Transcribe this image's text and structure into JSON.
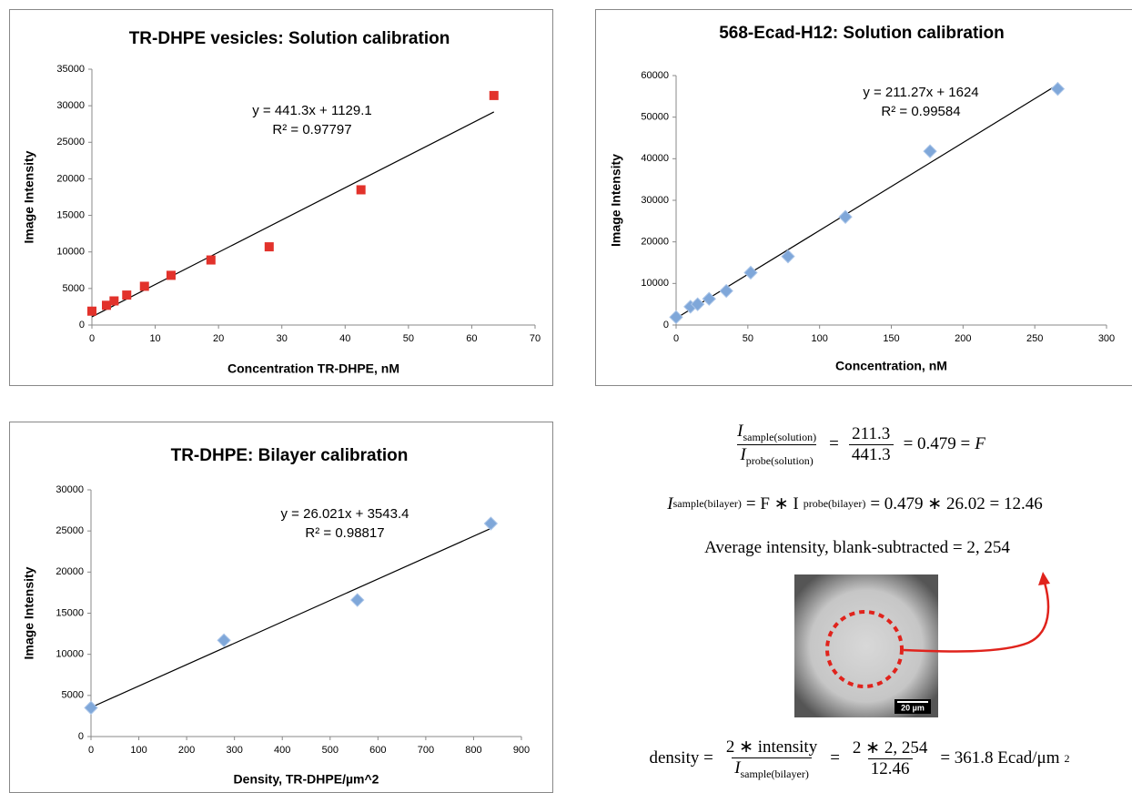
{
  "chart_data": [
    {
      "type": "scatter",
      "title": "TR-DHPE vesicles: Solution calibration",
      "xlabel": "Concentration TR-DHPE, nM",
      "ylabel": "Image Intensity",
      "marker": "square",
      "color": "#e2322b",
      "x": [
        0,
        2.3,
        3.5,
        5.5,
        8.3,
        12.5,
        18.8,
        28,
        42.5,
        63.5
      ],
      "values": [
        1900,
        2700,
        3300,
        4100,
        5300,
        6800,
        8900,
        10700,
        18500,
        31400
      ],
      "xlim": [
        0,
        70
      ],
      "xticks": [
        0,
        10,
        20,
        30,
        40,
        50,
        60,
        70
      ],
      "ylim": [
        0,
        35000
      ],
      "yticks": [
        0,
        5000,
        10000,
        15000,
        20000,
        25000,
        30000,
        35000
      ],
      "trendline": {
        "equation": "y = 441.3x + 1129.1",
        "r2": "R² = 0.97797",
        "slope": 441.3,
        "intercept": 1129.1,
        "color": "#000000"
      }
    },
    {
      "type": "scatter",
      "title": "568-Ecad-H12: Solution calibration",
      "xlabel": "Concentration, nM",
      "ylabel": "Image Intensity",
      "marker": "diamond",
      "color": "#7fa7d9",
      "x": [
        0,
        10,
        15,
        23,
        35,
        52,
        78,
        118,
        177,
        266
      ],
      "values": [
        1900,
        4400,
        5000,
        6300,
        8200,
        12600,
        16500,
        26000,
        41800,
        56800
      ],
      "xlim": [
        0,
        300
      ],
      "xticks": [
        0,
        50,
        100,
        150,
        200,
        250,
        300
      ],
      "ylim": [
        0,
        60000
      ],
      "yticks": [
        0,
        10000,
        20000,
        30000,
        40000,
        50000,
        60000
      ],
      "trendline": {
        "equation": "y = 211.27x + 1624",
        "r2": "R² = 0.99584",
        "slope": 211.27,
        "intercept": 1624,
        "color": "#000000"
      }
    },
    {
      "type": "scatter",
      "title": "TR-DHPE: Bilayer calibration",
      "xlabel": "Density, TR-DHPE/µm^2",
      "ylabel": "Image Intensity",
      "marker": "diamond",
      "color": "#7fa7d9",
      "x": [
        0,
        278,
        557,
        836
      ],
      "values": [
        3500,
        11700,
        16600,
        25900
      ],
      "xlim": [
        0,
        900
      ],
      "xticks": [
        0,
        100,
        200,
        300,
        400,
        500,
        600,
        700,
        800,
        900
      ],
      "ylim": [
        0,
        30000
      ],
      "yticks": [
        0,
        5000,
        10000,
        15000,
        20000,
        25000,
        30000
      ],
      "trendline": {
        "equation": "y = 26.021x + 3543.4",
        "r2": "R² = 0.98817",
        "slope": 26.021,
        "intercept": 3543.4,
        "color": "#000000"
      }
    }
  ],
  "formulas": {
    "f1": {
      "num_symbol": "I",
      "num_sub": "sample(solution)",
      "den_symbol": "I",
      "den_sub": "probe(solution)",
      "eq": "=",
      "frac_num": "211.3",
      "frac_den": "441.3",
      "rest": "= 0.479 =",
      "var": "F"
    },
    "f2": {
      "symbol": "I",
      "sub": "sample(bilayer)",
      "mid": "= F ∗ I",
      "mid_sub": "probe(bilayer)",
      "rest": "= 0.479 ∗ 26.02 = 12.46"
    },
    "f3": {
      "text": "Average intensity, blank-subtracted = 2, 254"
    },
    "f4": {
      "lhs": "density =",
      "num1": "2 ∗ intensity",
      "den1_symbol": "I",
      "den1_sub": "sample(bilayer)",
      "eq": "=",
      "num2": "2 ∗ 2, 254",
      "den2": "12.46",
      "rest": "= 361.8 Ecad/μm",
      "sup": "2"
    }
  },
  "image": {
    "scale_bar": "20 µm"
  }
}
